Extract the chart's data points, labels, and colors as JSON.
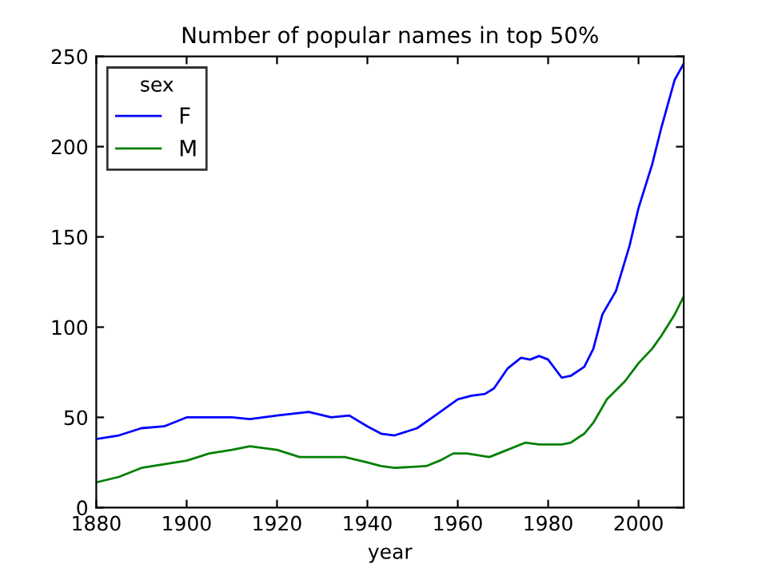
{
  "chart_data": {
    "type": "line",
    "title": "Number of popular names in top 50%",
    "xlabel": "year",
    "legend_title": "sex",
    "legend": "top left",
    "grid": false,
    "xlim": [
      1880,
      2010
    ],
    "xticks": [
      1880,
      1900,
      1920,
      1940,
      1960,
      1980,
      2000
    ],
    "ylim": [
      0,
      250
    ],
    "yticks": [
      0,
      50,
      100,
      150,
      200,
      250
    ],
    "series": [
      {
        "name": "F",
        "color": "#0000ff",
        "x": [
          1880,
          1885,
          1890,
          1895,
          1900,
          1905,
          1910,
          1914,
          1920,
          1927,
          1932,
          1936,
          1940,
          1943,
          1946,
          1951,
          1955,
          1960,
          1963,
          1966,
          1968,
          1971,
          1974,
          1976,
          1978,
          1980,
          1983,
          1985,
          1988,
          1990,
          1992,
          1995,
          1998,
          2000,
          2003,
          2005,
          2008,
          2010
        ],
        "values": [
          38,
          40,
          44,
          45,
          50,
          50,
          50,
          49,
          51,
          53,
          50,
          51,
          45,
          41,
          40,
          44,
          51,
          60,
          62,
          63,
          66,
          77,
          83,
          82,
          84,
          82,
          72,
          73,
          78,
          88,
          107,
          120,
          145,
          166,
          190,
          210,
          237,
          246
        ]
      },
      {
        "name": "M",
        "color": "#008000",
        "x": [
          1880,
          1885,
          1890,
          1895,
          1900,
          1905,
          1910,
          1914,
          1920,
          1925,
          1930,
          1935,
          1940,
          1943,
          1946,
          1953,
          1956,
          1959,
          1962,
          1967,
          1970,
          1975,
          1978,
          1983,
          1985,
          1988,
          1990,
          1993,
          1997,
          2000,
          2003,
          2005,
          2008,
          2010
        ],
        "values": [
          14,
          17,
          22,
          24,
          26,
          30,
          32,
          34,
          32,
          28,
          28,
          28,
          25,
          23,
          22,
          23,
          26,
          30,
          30,
          28,
          31,
          36,
          35,
          35,
          36,
          41,
          47,
          60,
          70,
          80,
          88,
          95,
          107,
          117
        ]
      }
    ]
  }
}
